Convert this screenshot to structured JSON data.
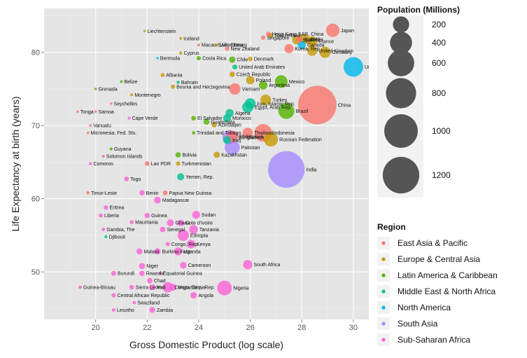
{
  "chart_data": {
    "type": "scatter",
    "title": "",
    "xlabel": "Gross Domestic Product (log scale)",
    "ylabel": "Life Expectancy at birth (years)",
    "xlim": [
      18.0,
      30.6
    ],
    "ylim": [
      43.5,
      86.0
    ],
    "x_ticks": [
      20,
      22,
      24,
      26,
      28,
      30
    ],
    "y_ticks": [
      50,
      60,
      70,
      80
    ],
    "grid": true,
    "legend_placement": "right",
    "size_legend": {
      "title": "Population (Millions)",
      "values": [
        200,
        400,
        600,
        800,
        1000,
        1200
      ]
    },
    "color_legend": {
      "title": "Region",
      "entries": [
        {
          "name": "East Asia & Pacific",
          "color": "#f8766d"
        },
        {
          "name": "Europe & Central Asia",
          "color": "#c49a00"
        },
        {
          "name": "Latin America & Caribbean",
          "color": "#53b400"
        },
        {
          "name": "Middle East & North Africa",
          "color": "#00c094"
        },
        {
          "name": "North America",
          "color": "#00b6eb"
        },
        {
          "name": "South Asia",
          "color": "#a58aff"
        },
        {
          "name": "Sub-Saharan Africa",
          "color": "#fb61d7"
        }
      ]
    },
    "points": [
      {
        "label": "China",
        "x": 28.6,
        "y": 72.8,
        "region": "East Asia & Pacific",
        "pop": 1340
      },
      {
        "label": "India",
        "x": 27.4,
        "y": 64.0,
        "region": "South Asia",
        "pop": 1200
      },
      {
        "label": "United States",
        "x": 30.0,
        "y": 78.0,
        "region": "North America",
        "pop": 310
      },
      {
        "label": "Japan",
        "x": 29.2,
        "y": 83.0,
        "region": "East Asia & Pacific",
        "pop": 127
      },
      {
        "label": "Brazil",
        "x": 27.4,
        "y": 72.0,
        "region": "Latin America & Caribbean",
        "pop": 195
      },
      {
        "label": "Russian Federation",
        "x": 26.8,
        "y": 68.1,
        "region": "Europe & Central Asia",
        "pop": 142
      },
      {
        "label": "Nigeria",
        "x": 25.0,
        "y": 47.8,
        "region": "Sub-Saharan Africa",
        "pop": 158
      },
      {
        "label": "Pakistan",
        "x": 25.3,
        "y": 67.0,
        "region": "South Asia",
        "pop": 170
      },
      {
        "label": "Bangladesh",
        "x": 25.2,
        "y": 68.4,
        "region": "South Asia",
        "pop": 148
      },
      {
        "label": "Indonesia",
        "x": 26.5,
        "y": 69.0,
        "region": "East Asia & Pacific",
        "pop": 240
      },
      {
        "label": "Thailand",
        "x": 25.9,
        "y": 69.0,
        "region": "East Asia & Pacific",
        "pop": 66
      },
      {
        "label": "Ethiopia",
        "x": 23.4,
        "y": 55.0,
        "region": "Sub-Saharan Africa",
        "pop": 83
      },
      {
        "label": "Egypt, Arab Rep.",
        "x": 25.9,
        "y": 72.5,
        "region": "Middle East & North Africa",
        "pop": 81
      },
      {
        "label": "Iran, Islamic Rep.",
        "x": 26.0,
        "y": 73.0,
        "region": "Middle East & North Africa",
        "pop": 74
      },
      {
        "label": "Turkey",
        "x": 26.6,
        "y": 73.5,
        "region": "Europe & Central Asia",
        "pop": 72
      },
      {
        "label": "Mexico",
        "x": 27.2,
        "y": 76.0,
        "region": "Latin America & Caribbean",
        "pop": 113
      },
      {
        "label": "Philippines",
        "x": 25.3,
        "y": 68.5,
        "region": "East Asia & Pacific",
        "pop": 93
      },
      {
        "label": "Vietnam",
        "x": 25.4,
        "y": 75.0,
        "region": "East Asia & Pacific",
        "pop": 87
      },
      {
        "label": "Germany",
        "x": 28.9,
        "y": 80.0,
        "region": "Europe & Central Asia",
        "pop": 82
      },
      {
        "label": "United Kingdom",
        "x": 28.4,
        "y": 80.2,
        "region": "Europe & Central Asia",
        "pop": 62
      },
      {
        "label": "France",
        "x": 28.4,
        "y": 81.5,
        "region": "Europe & Central Asia",
        "pop": 65
      },
      {
        "label": "Italy",
        "x": 28.1,
        "y": 81.8,
        "region": "Europe & Central Asia",
        "pop": 60
      },
      {
        "label": "Korea, Rep.",
        "x": 27.5,
        "y": 80.5,
        "region": "East Asia & Pacific",
        "pop": 49
      },
      {
        "label": "South Africa",
        "x": 25.9,
        "y": 51.0,
        "region": "Sub-Saharan Africa",
        "pop": 50
      },
      {
        "label": "Algeria",
        "x": 25.2,
        "y": 71.7,
        "region": "Middle East & North Africa",
        "pop": 35
      },
      {
        "label": "Argentina",
        "x": 26.5,
        "y": 75.5,
        "region": "Latin America & Caribbean",
        "pop": 40
      },
      {
        "label": "Canada",
        "x": 28.0,
        "y": 81.0,
        "region": "North America",
        "pop": 34
      },
      {
        "label": "Hong Kong SAR, China",
        "x": 26.7,
        "y": 82.5,
        "region": "East Asia & Pacific",
        "pop": 7
      },
      {
        "label": "Switzerland",
        "x": 26.8,
        "y": 82.3,
        "region": "Europe & Central Asia",
        "pop": 8
      },
      {
        "label": "Singapore",
        "x": 26.5,
        "y": 82.0,
        "region": "East Asia & Pacific",
        "pop": 5
      },
      {
        "label": "Spain",
        "x": 27.8,
        "y": 81.7,
        "region": "Europe & Central Asia",
        "pop": 46
      },
      {
        "label": "Australia",
        "x": 27.9,
        "y": 81.8,
        "region": "East Asia & Pacific",
        "pop": 22
      },
      {
        "label": "Liechtenstein",
        "x": 21.9,
        "y": 82.9,
        "region": "Europe & Central Asia",
        "pop": 0.04
      },
      {
        "label": "Iceland",
        "x": 23.3,
        "y": 81.9,
        "region": "Europe & Central Asia",
        "pop": 0.3
      },
      {
        "label": "Macao SAR, China",
        "x": 24.0,
        "y": 81.0,
        "region": "East Asia & Pacific",
        "pop": 0.5
      },
      {
        "label": "Luxembourg",
        "x": 24.7,
        "y": 81.0,
        "region": "Europe & Central Asia",
        "pop": 0.5
      },
      {
        "label": "Cyprus",
        "x": 23.3,
        "y": 79.9,
        "region": "Europe & Central Asia",
        "pop": 1
      },
      {
        "label": "New Zealand",
        "x": 25.1,
        "y": 80.5,
        "region": "East Asia & Pacific",
        "pop": 4.4
      },
      {
        "label": "Bermuda",
        "x": 22.4,
        "y": 79.2,
        "region": "North America",
        "pop": 0.06
      },
      {
        "label": "Costa Rica",
        "x": 24.0,
        "y": 79.2,
        "region": "Latin America & Caribbean",
        "pop": 4.6
      },
      {
        "label": "Chile",
        "x": 25.3,
        "y": 79.0,
        "region": "Latin America & Caribbean",
        "pop": 17
      },
      {
        "label": "Denmark",
        "x": 26.0,
        "y": 79.1,
        "region": "Europe & Central Asia",
        "pop": 5.5
      },
      {
        "label": "United Arab Emirates",
        "x": 25.4,
        "y": 78.0,
        "region": "Middle East & North Africa",
        "pop": 8
      },
      {
        "label": "Albania",
        "x": 22.6,
        "y": 76.9,
        "region": "Europe & Central Asia",
        "pop": 3
      },
      {
        "label": "Czech Republic",
        "x": 25.3,
        "y": 77.0,
        "region": "Europe & Central Asia",
        "pop": 10
      },
      {
        "label": "Poland",
        "x": 26.0,
        "y": 76.2,
        "region": "Europe & Central Asia",
        "pop": 38
      },
      {
        "label": "Belize",
        "x": 21.0,
        "y": 76.0,
        "region": "Latin America & Caribbean",
        "pop": 0.3
      },
      {
        "label": "Bahrain",
        "x": 23.2,
        "y": 75.9,
        "region": "Middle East & North Africa",
        "pop": 1.2
      },
      {
        "label": "Bosnia and Herzegovina",
        "x": 23.0,
        "y": 75.3,
        "region": "Europe & Central Asia",
        "pop": 3.8
      },
      {
        "label": "Grenada",
        "x": 20.0,
        "y": 75.0,
        "region": "Latin America & Caribbean",
        "pop": 0.1
      },
      {
        "label": "Montenegro",
        "x": 21.4,
        "y": 74.2,
        "region": "Europe & Central Asia",
        "pop": 0.6
      },
      {
        "label": "Seychelles",
        "x": 20.6,
        "y": 73.0,
        "region": "Sub-Saharan Africa",
        "pop": 0.09
      },
      {
        "label": "Tonga",
        "x": 19.3,
        "y": 71.9,
        "region": "East Asia & Pacific",
        "pop": 0.1
      },
      {
        "label": "Samoa",
        "x": 20.0,
        "y": 71.9,
        "region": "East Asia & Pacific",
        "pop": 0.2
      },
      {
        "label": "Cape Verde",
        "x": 21.3,
        "y": 71.0,
        "region": "Sub-Saharan Africa",
        "pop": 0.5
      },
      {
        "label": "El Salvador",
        "x": 23.8,
        "y": 71.0,
        "region": "Latin America & Caribbean",
        "pop": 6.2
      },
      {
        "label": "Morocco",
        "x": 25.1,
        "y": 71.0,
        "region": "Middle East & North Africa",
        "pop": 32
      },
      {
        "label": "Azerbaijan",
        "x": 24.6,
        "y": 70.1,
        "region": "Europe & Central Asia",
        "pop": 9
      },
      {
        "label": "Guatemala",
        "x": 24.3,
        "y": 70.5,
        "region": "Latin America & Caribbean",
        "pop": 14
      },
      {
        "label": "Vanuatu",
        "x": 19.8,
        "y": 70.0,
        "region": "East Asia & Pacific",
        "pop": 0.2
      },
      {
        "label": "Micronesia, Fed. Sts.",
        "x": 19.7,
        "y": 69.0,
        "region": "East Asia & Pacific",
        "pop": 0.1
      },
      {
        "label": "Trinidad and Tobago",
        "x": 23.8,
        "y": 69.0,
        "region": "Latin America & Caribbean",
        "pop": 1.3
      },
      {
        "label": "Iraq",
        "x": 25.1,
        "y": 68.0,
        "region": "Middle East & North Africa",
        "pop": 31
      },
      {
        "label": "Guyana",
        "x": 20.6,
        "y": 66.8,
        "region": "Latin America & Caribbean",
        "pop": 0.8
      },
      {
        "label": "Solomon Islands",
        "x": 20.3,
        "y": 65.8,
        "region": "East Asia & Pacific",
        "pop": 0.5
      },
      {
        "label": "Bolivia",
        "x": 23.2,
        "y": 66.0,
        "region": "Latin America & Caribbean",
        "pop": 10
      },
      {
        "label": "Kazakhstan",
        "x": 24.7,
        "y": 66.0,
        "region": "Europe & Central Asia",
        "pop": 16
      },
      {
        "label": "Comoros",
        "x": 19.8,
        "y": 64.8,
        "region": "Sub-Saharan Africa",
        "pop": 0.7
      },
      {
        "label": "Lao PDR",
        "x": 22.0,
        "y": 64.8,
        "region": "East Asia & Pacific",
        "pop": 6
      },
      {
        "label": "Turkmenistan",
        "x": 23.2,
        "y": 64.8,
        "region": "Europe & Central Asia",
        "pop": 5
      },
      {
        "label": "Togo",
        "x": 21.2,
        "y": 62.7,
        "region": "Sub-Saharan Africa",
        "pop": 6
      },
      {
        "label": "Yemen, Rep.",
        "x": 23.3,
        "y": 63.0,
        "region": "Middle East & North Africa",
        "pop": 24
      },
      {
        "label": "Timor-Leste",
        "x": 19.7,
        "y": 60.8,
        "region": "East Asia & Pacific",
        "pop": 1.1
      },
      {
        "label": "Benin",
        "x": 21.8,
        "y": 60.8,
        "region": "Sub-Saharan Africa",
        "pop": 9
      },
      {
        "label": "Papua New Guinea",
        "x": 22.7,
        "y": 60.8,
        "region": "East Asia & Pacific",
        "pop": 6.9
      },
      {
        "label": "Madagascar",
        "x": 22.4,
        "y": 59.8,
        "region": "Sub-Saharan Africa",
        "pop": 21
      },
      {
        "label": "Eritrea",
        "x": 20.4,
        "y": 58.8,
        "region": "Sub-Saharan Africa",
        "pop": 5
      },
      {
        "label": "Liberia",
        "x": 20.2,
        "y": 57.7,
        "region": "Sub-Saharan Africa",
        "pop": 4
      },
      {
        "label": "Guinea",
        "x": 22.0,
        "y": 57.7,
        "region": "Sub-Saharan Africa",
        "pop": 10
      },
      {
        "label": "Sudan",
        "x": 23.9,
        "y": 57.8,
        "region": "Sub-Saharan Africa",
        "pop": 33
      },
      {
        "label": "Mauritania",
        "x": 21.4,
        "y": 56.8,
        "region": "Sub-Saharan Africa",
        "pop": 3.5
      },
      {
        "label": "Ghana",
        "x": 22.9,
        "y": 56.7,
        "region": "Sub-Saharan Africa",
        "pop": 24
      },
      {
        "label": "Cote d'Ivoire",
        "x": 23.3,
        "y": 56.7,
        "region": "Sub-Saharan Africa",
        "pop": 20
      },
      {
        "label": "Gambia, The",
        "x": 20.3,
        "y": 55.8,
        "region": "Sub-Saharan Africa",
        "pop": 1.7
      },
      {
        "label": "Senegal",
        "x": 22.6,
        "y": 55.8,
        "region": "Sub-Saharan Africa",
        "pop": 12
      },
      {
        "label": "Tanzania",
        "x": 23.8,
        "y": 55.8,
        "region": "Sub-Saharan Africa",
        "pop": 44
      },
      {
        "label": "Djibouti",
        "x": 20.4,
        "y": 54.8,
        "region": "Middle East & North Africa",
        "pop": 0.9
      },
      {
        "label": "Congo, Rep.",
        "x": 22.8,
        "y": 53.8,
        "region": "Sub-Saharan Africa",
        "pop": 4
      },
      {
        "label": "Kenya",
        "x": 23.7,
        "y": 53.8,
        "region": "Sub-Saharan Africa",
        "pop": 40
      },
      {
        "label": "Malawi",
        "x": 21.7,
        "y": 52.8,
        "region": "Sub-Saharan Africa",
        "pop": 15
      },
      {
        "label": "Burkina Faso",
        "x": 22.4,
        "y": 52.8,
        "region": "Sub-Saharan Africa",
        "pop": 16
      },
      {
        "label": "Uganda",
        "x": 23.2,
        "y": 52.8,
        "region": "Sub-Saharan Africa",
        "pop": 33
      },
      {
        "label": "Niger",
        "x": 21.8,
        "y": 50.8,
        "region": "Sub-Saharan Africa",
        "pop": 15
      },
      {
        "label": "Cameroon",
        "x": 23.4,
        "y": 50.9,
        "region": "Sub-Saharan Africa",
        "pop": 20
      },
      {
        "label": "Burundi",
        "x": 20.7,
        "y": 49.8,
        "region": "Sub-Saharan Africa",
        "pop": 8
      },
      {
        "label": "Rwanda",
        "x": 21.8,
        "y": 49.8,
        "region": "Sub-Saharan Africa",
        "pop": 10
      },
      {
        "label": "Equatorial Guinea",
        "x": 22.5,
        "y": 49.8,
        "region": "Sub-Saharan Africa",
        "pop": 0.7
      },
      {
        "label": "Chad",
        "x": 22.1,
        "y": 48.8,
        "region": "Sub-Saharan Africa",
        "pop": 11
      },
      {
        "label": "Guinea-Bissau",
        "x": 19.4,
        "y": 47.9,
        "region": "Sub-Saharan Africa",
        "pop": 1.5
      },
      {
        "label": "Sierra Leone",
        "x": 21.4,
        "y": 47.9,
        "region": "Sub-Saharan Africa",
        "pop": 6
      },
      {
        "label": "Mali",
        "x": 22.2,
        "y": 47.9,
        "region": "Sub-Saharan Africa",
        "pop": 15
      },
      {
        "label": "Central African Republic",
        "x": 20.7,
        "y": 46.8,
        "region": "Sub-Saharan Africa",
        "pop": 4.4
      },
      {
        "label": "Congo, Dem. Rep.",
        "x": 22.8,
        "y": 47.9,
        "region": "Sub-Saharan Africa",
        "pop": 66
      },
      {
        "label": "Mozambique",
        "x": 23.0,
        "y": 47.9,
        "region": "Sub-Saharan Africa",
        "pop": 23
      },
      {
        "label": "Angola",
        "x": 23.8,
        "y": 46.8,
        "region": "Sub-Saharan Africa",
        "pop": 19
      },
      {
        "label": "Swaziland",
        "x": 21.5,
        "y": 45.8,
        "region": "Sub-Saharan Africa",
        "pop": 1.2
      },
      {
        "label": "Lesotho",
        "x": 20.7,
        "y": 44.8,
        "region": "Sub-Saharan Africa",
        "pop": 2
      },
      {
        "label": "Zambia",
        "x": 22.2,
        "y": 44.8,
        "region": "Sub-Saharan Africa",
        "pop": 13
      }
    ]
  }
}
